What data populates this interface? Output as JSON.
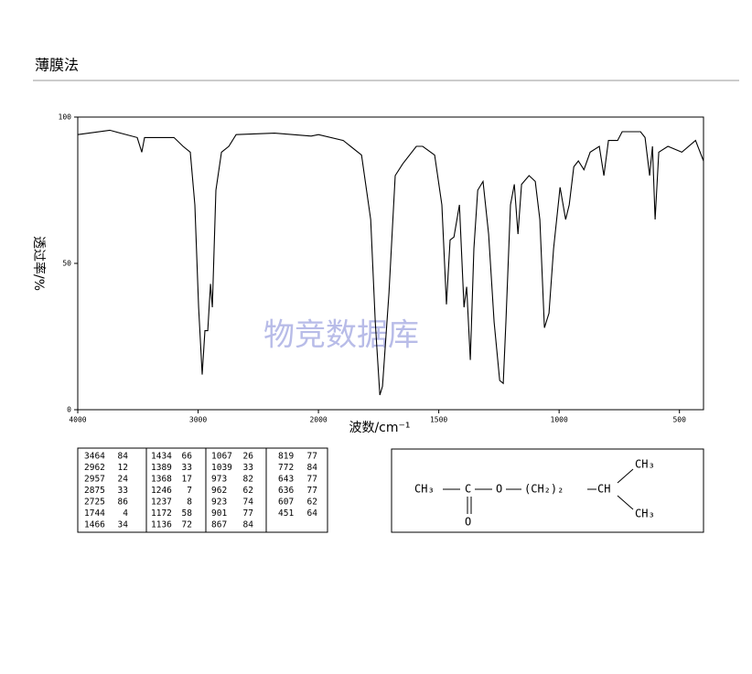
{
  "chart_data": {
    "type": "line",
    "title": "薄膜法",
    "xlabel": "波数/cm⁻¹",
    "ylabel": "透过率/%",
    "watermark": "物竞数据库",
    "xlim": [
      4000,
      400
    ],
    "xbreak": 2000,
    "xticks": [
      4000,
      3000,
      2000,
      1500,
      1000,
      500
    ],
    "ylim": [
      0,
      100
    ],
    "yticks": [
      0,
      50,
      100
    ],
    "color": "#000000",
    "x": [
      4000,
      3734,
      3506,
      3468,
      3445,
      3200,
      3125,
      3065,
      3027,
      2996,
      2966,
      2943,
      2920,
      2897,
      2882,
      2852,
      2806,
      2745,
      2684,
      2365,
      2061,
      2000,
      1897,
      1821,
      1783,
      1764,
      1745,
      1734,
      1707,
      1681,
      1650,
      1593,
      1567,
      1517,
      1487,
      1468,
      1453,
      1437,
      1414,
      1395,
      1384,
      1369,
      1354,
      1338,
      1316,
      1293,
      1270,
      1247,
      1232,
      1221,
      1202,
      1186,
      1171,
      1156,
      1125,
      1099,
      1080,
      1061,
      1042,
      1023,
      996,
      973,
      958,
      939,
      920,
      897,
      871,
      833,
      814,
      795,
      757,
      738,
      662,
      643,
      624,
      612,
      601,
      586,
      548,
      490,
      433,
      400
    ],
    "values": [
      94,
      95.5,
      93,
      88,
      93,
      93,
      90,
      88,
      70,
      35,
      12,
      27,
      27,
      43,
      35,
      75,
      88,
      90,
      94,
      94.5,
      93.5,
      94,
      92,
      87,
      65,
      30,
      5,
      8,
      40,
      80,
      84,
      90,
      90,
      87,
      70,
      36,
      58,
      59,
      70,
      35,
      42,
      17,
      55,
      75,
      78,
      60,
      30,
      10,
      9,
      30,
      70,
      77,
      60,
      77,
      80,
      78,
      65,
      28,
      33,
      55,
      76,
      65,
      70,
      83,
      85,
      82,
      88,
      90,
      80,
      92,
      92,
      95,
      95,
      93,
      80,
      90,
      65,
      88,
      90,
      88,
      92,
      85
    ]
  },
  "peak_table": {
    "columns": [
      [
        [
          3464,
          84
        ],
        [
          2962,
          12
        ],
        [
          2957,
          24
        ],
        [
          2875,
          33
        ],
        [
          2725,
          86
        ],
        [
          1744,
          4
        ],
        [
          1466,
          34
        ]
      ],
      [
        [
          1434,
          66
        ],
        [
          1389,
          33
        ],
        [
          1368,
          17
        ],
        [
          1246,
          7
        ],
        [
          1237,
          8
        ],
        [
          1172,
          58
        ],
        [
          1136,
          72
        ]
      ],
      [
        [
          1067,
          26
        ],
        [
          1039,
          33
        ],
        [
          973,
          82
        ],
        [
          962,
          62
        ],
        [
          923,
          74
        ],
        [
          901,
          77
        ],
        [
          867,
          84
        ]
      ],
      [
        [
          819,
          77
        ],
        [
          772,
          84
        ],
        [
          643,
          77
        ],
        [
          636,
          77
        ],
        [
          607,
          62
        ],
        [
          451,
          64
        ]
      ]
    ]
  },
  "structure": {
    "labels": [
      "CH₃",
      "C",
      "O",
      "O",
      "(CH₂)₂",
      "CH",
      "CH₃",
      "CH₃"
    ]
  }
}
